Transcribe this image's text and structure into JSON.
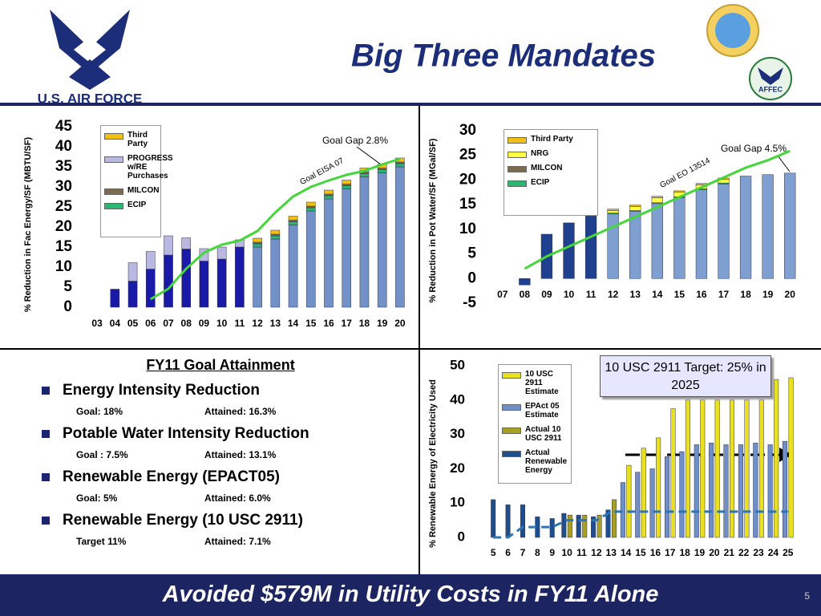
{
  "header": {
    "title": "Big Three Mandates",
    "logo_text": "U.S. AIR FORCE",
    "badge_text": "AFFEC"
  },
  "chart_data": [
    {
      "type": "bar",
      "stacked": true,
      "legend": "upper left",
      "ylabel": "% Reduction in Fac Energy/SF (MBTU/SF)",
      "categories": [
        "03",
        "04",
        "05",
        "06",
        "07",
        "08",
        "09",
        "10",
        "11",
        "12",
        "13",
        "14",
        "15",
        "16",
        "17",
        "18",
        "19",
        "20"
      ],
      "ylim": [
        0,
        45
      ],
      "yticks": [
        0,
        5,
        10,
        15,
        20,
        25,
        30,
        35,
        40,
        45
      ],
      "annotations": [
        "Goal Gap 2.8%",
        "Goal EISA 07"
      ],
      "series": [
        {
          "color": "#1a1aa8",
          "values": [
            null,
            4.5,
            6.5,
            9.5,
            13,
            14.5,
            11.5,
            12,
            15,
            null,
            null,
            null,
            null,
            null,
            null,
            null,
            null,
            null
          ]
        },
        {
          "color": "#7391c9",
          "values": [
            null,
            null,
            null,
            null,
            null,
            null,
            null,
            null,
            null,
            15,
            17,
            20.5,
            24,
            27,
            29.5,
            32.5,
            33.5,
            35
          ]
        },
        {
          "name": "ECIP",
          "color": "#2bb673",
          "values": [
            null,
            null,
            null,
            null,
            null,
            null,
            null,
            null,
            null,
            0.8,
            0.8,
            0.8,
            0.8,
            0.8,
            0.8,
            0.8,
            0.8,
            0.8
          ]
        },
        {
          "name": "MILCON",
          "color": "#7a6a50",
          "values": [
            null,
            null,
            null,
            null,
            null,
            null,
            null,
            null,
            null,
            0.4,
            0.4,
            0.4,
            0.4,
            0.4,
            0.4,
            0.4,
            0.4,
            0.4
          ]
        },
        {
          "name": "PROGRESS w/RE Purchases",
          "color": "#b8b8e0",
          "values": [
            null,
            null,
            4.6,
            4.4,
            4.8,
            2.8,
            3.1,
            3,
            1.8,
            null,
            null,
            null,
            null,
            null,
            null,
            null,
            null,
            null
          ]
        },
        {
          "name": "Third Party",
          "color": "#f2c010",
          "values": [
            null,
            null,
            null,
            null,
            null,
            null,
            null,
            null,
            null,
            1,
            1,
            1,
            1,
            1,
            1,
            1,
            1,
            1
          ]
        },
        {
          "type": "line",
          "color": "#44d63a",
          "values": [
            null,
            null,
            null,
            2,
            4.6,
            9.6,
            13.6,
            15.6,
            16.6,
            19,
            23.6,
            27.6,
            30,
            31.6,
            33,
            34,
            35.6,
            37
          ]
        }
      ]
    },
    {
      "type": "bar",
      "stacked": true,
      "legend": "upper left",
      "ylabel": "% Reduction in Pot Water/SF (MGal/SF)",
      "categories": [
        "07",
        "08",
        "09",
        "10",
        "11",
        "12",
        "13",
        "14",
        "15",
        "16",
        "17",
        "18",
        "19",
        "20"
      ],
      "ylim": [
        -5,
        30
      ],
      "yticks": [
        -5,
        0,
        5,
        10,
        15,
        20,
        25,
        30
      ],
      "annotations": [
        "Goal Gap 4.5%",
        "Goal EO 13514"
      ],
      "series": [
        {
          "color": "#1f3f8f",
          "values": [
            null,
            -1.3,
            9,
            11.3,
            13.1,
            null,
            null,
            null,
            null,
            null,
            null,
            null,
            null,
            null
          ]
        },
        {
          "color": "#7f9fd0",
          "values": [
            null,
            null,
            null,
            null,
            null,
            13.1,
            13.6,
            15.2,
            16.4,
            18,
            19.2,
            20.8,
            21.1,
            21.4
          ]
        },
        {
          "name": "ECIP",
          "color": "#2bb673",
          "values": [
            null,
            null,
            null,
            null,
            null,
            0.2,
            0.2,
            0.2,
            0.2,
            0.2,
            0.2,
            null,
            null,
            null
          ]
        },
        {
          "name": "MILCON",
          "color": "#7a6a50",
          "values": [
            null,
            null,
            null,
            null,
            null,
            null,
            null,
            null,
            null,
            null,
            null,
            null,
            null,
            null
          ]
        },
        {
          "name": "NRG",
          "color": "#ffff40",
          "values": [
            null,
            null,
            null,
            null,
            null,
            0.5,
            0.8,
            1,
            0.9,
            0.8,
            0.7,
            null,
            null,
            null
          ]
        },
        {
          "name": "Third Party",
          "color": "#f2c010",
          "values": [
            null,
            null,
            null,
            null,
            null,
            0.3,
            0.3,
            0.3,
            0.3,
            0.3,
            0.3,
            null,
            null,
            null
          ]
        },
        {
          "type": "line",
          "color": "#44d63a",
          "values": [
            null,
            2,
            4.5,
            6.5,
            8.5,
            10.5,
            12.5,
            14.5,
            16.5,
            18.5,
            20.5,
            22.5,
            24,
            25.9
          ]
        }
      ]
    },
    {
      "type": "bar",
      "stacked": false,
      "legend": "upper left",
      "ylabel": "% Renewable Energy of Electricity Used",
      "categories": [
        "5",
        "6",
        "7",
        "8",
        "9",
        "10",
        "11",
        "12",
        "13",
        "14",
        "15",
        "16",
        "17",
        "18",
        "19",
        "20",
        "21",
        "22",
        "23",
        "24",
        "25"
      ],
      "ylim": [
        0,
        50
      ],
      "yticks": [
        0,
        10,
        20,
        30,
        40,
        50
      ],
      "annotations": [
        "10 USC 2911 Target: 25% in 2025"
      ],
      "series": [
        {
          "name": "Actual Renewable Energy",
          "color": "#1f4e8f",
          "values": [
            11,
            9.5,
            9.5,
            6,
            5.5,
            7,
            6.5,
            6,
            8,
            null,
            null,
            null,
            null,
            null,
            null,
            null,
            null,
            null,
            null,
            null,
            null
          ]
        },
        {
          "name": "Actual 10 USC 2911",
          "color": "#a8a020",
          "values": [
            null,
            null,
            null,
            null,
            null,
            6.5,
            6.5,
            6.5,
            11,
            null,
            null,
            null,
            null,
            null,
            null,
            null,
            null,
            null,
            null,
            null,
            null
          ]
        },
        {
          "name": "EPAct 05 Estimate",
          "color": "#6f8fc8",
          "values": [
            null,
            null,
            null,
            null,
            null,
            null,
            null,
            null,
            null,
            16,
            19,
            20,
            23.5,
            25,
            27,
            27.5,
            27,
            27,
            27.5,
            27,
            28
          ]
        },
        {
          "name": "10 USC 2911 Estimate",
          "color": "#e8e020",
          "values": [
            null,
            null,
            null,
            null,
            null,
            null,
            null,
            null,
            null,
            21,
            26,
            29,
            37.5,
            40,
            40,
            40,
            40,
            40,
            40,
            46,
            46.5
          ]
        },
        {
          "type": "line",
          "dash": true,
          "color": "#2e75b6",
          "values": [
            0,
            0,
            3,
            3,
            3,
            5,
            5,
            5,
            7.5,
            7.5,
            7.5,
            7.5,
            7.5,
            7.5,
            7.5,
            7.5,
            7.5,
            7.5,
            7.5,
            7.5,
            7.5
          ]
        }
      ]
    }
  ],
  "attainment": {
    "title": "FY11 Goal Attainment",
    "items": [
      {
        "label": "Energy Intensity Reduction",
        "goal": "Goal: 18%",
        "attained": "Attained: 16.3%"
      },
      {
        "label": "Potable Water Intensity Reduction",
        "goal": "Goal : 7.5%",
        "attained": "Attained:  13.1%"
      },
      {
        "label": "Renewable Energy (EPACT05)",
        "goal": "Goal: 5%",
        "attained": "Attained: 6.0%"
      },
      {
        "label": "Renewable Energy (10 USC 2911)",
        "goal": "Target 11%",
        "attained": "Attained: 7.1%"
      }
    ]
  },
  "footer": {
    "text": "Avoided $579M in Utility Costs in FY11 Alone",
    "page": 5
  }
}
